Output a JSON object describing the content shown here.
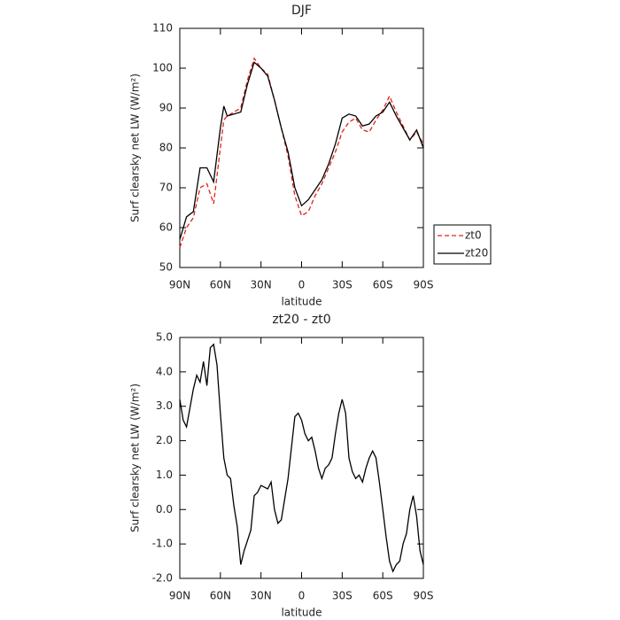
{
  "chart_data": [
    {
      "type": "line",
      "title": "DJF",
      "x_label": "latitude",
      "y_label": "Surf clearsky net LW (W/m²)",
      "x": [
        90,
        85,
        80,
        75,
        70,
        65,
        60,
        57.5,
        55,
        50,
        45,
        40,
        35,
        30,
        25,
        20,
        15,
        10,
        5,
        0,
        -5,
        -10,
        -15,
        -20,
        -25,
        -30,
        -35,
        -40,
        -45,
        -50,
        -55,
        -60,
        -65,
        -70,
        -75,
        -80,
        -85,
        -90
      ],
      "series": [
        {
          "name": "zt0",
          "color": "#e0201b",
          "linestyle": "dashed",
          "values": [
            55,
            60,
            62.5,
            70,
            71,
            66,
            80,
            87,
            88,
            89,
            90,
            97,
            102.5,
            100,
            98.5,
            92,
            85,
            78,
            68,
            63,
            64,
            68,
            71,
            75,
            79,
            84,
            86.5,
            87.5,
            84.5,
            84,
            87,
            89.5,
            93,
            89,
            85.5,
            82,
            84,
            81
          ]
        },
        {
          "name": "zt20",
          "color": "#000000",
          "linestyle": "solid",
          "values": [
            57,
            62.7,
            64,
            75,
            75,
            71.5,
            85,
            90.5,
            88,
            88.5,
            89,
            96,
            101.5,
            100,
            98,
            92,
            85,
            79,
            70,
            65.5,
            67,
            69.5,
            72,
            76,
            81,
            87.5,
            88.5,
            88,
            85.5,
            86,
            88,
            89,
            91.5,
            88,
            85,
            82,
            84.5,
            80
          ]
        }
      ],
      "xlim": [
        90,
        -90
      ],
      "xticks": [
        {
          "value": 90,
          "label": "90N"
        },
        {
          "value": 60,
          "label": "60N"
        },
        {
          "value": 30,
          "label": "30N"
        },
        0,
        {
          "value": -30,
          "label": "30S"
        },
        {
          "value": -60,
          "label": "60S"
        },
        {
          "value": -90,
          "label": "90S"
        }
      ],
      "ylim": [
        50,
        110
      ],
      "yticks": [
        50,
        60,
        70,
        80,
        90,
        100,
        110
      ],
      "legend": "right"
    },
    {
      "type": "line",
      "title": "zt20 - zt0",
      "x_label": "latitude",
      "y_label": "Surf clearsky net LW (W/m²)",
      "x": [
        90,
        87.5,
        85,
        80,
        77.5,
        75,
        72.5,
        70,
        67.5,
        65,
        62.5,
        60,
        57.5,
        55,
        52.5,
        50,
        47.5,
        45,
        42.5,
        40,
        37.5,
        35,
        32.5,
        30,
        25,
        22.5,
        20,
        17.5,
        15,
        12.5,
        10,
        5,
        2.5,
        0,
        -2.5,
        -5,
        -7.5,
        -10,
        -12.5,
        -15,
        -17.5,
        -20,
        -22.5,
        -25,
        -27.5,
        -30,
        -32.5,
        -35,
        -37.5,
        -40,
        -42.5,
        -45,
        -47.5,
        -50,
        -52.5,
        -55,
        -57.5,
        -60,
        -62.5,
        -65,
        -67.5,
        -70,
        -72.5,
        -75,
        -77.5,
        -80,
        -82.5,
        -85,
        -87.5,
        -90
      ],
      "series": [
        {
          "color": "#000000",
          "linestyle": "solid",
          "values": [
            3.2,
            2.6,
            2.4,
            3.5,
            3.9,
            3.7,
            4.3,
            3.6,
            4.7,
            4.8,
            4.2,
            2.8,
            1.5,
            1.0,
            0.9,
            0.1,
            -0.5,
            -1.6,
            -1.2,
            -0.9,
            -0.6,
            0.4,
            0.5,
            0.7,
            0.6,
            0.8,
            0.0,
            -0.4,
            -0.3,
            0.3,
            0.9,
            2.7,
            2.8,
            2.6,
            2.2,
            2.0,
            2.1,
            1.7,
            1.2,
            0.9,
            1.2,
            1.3,
            1.5,
            2.2,
            2.8,
            3.2,
            2.8,
            1.5,
            1.1,
            0.9,
            1.0,
            0.8,
            1.2,
            1.5,
            1.7,
            1.5,
            0.8,
            0.0,
            -0.8,
            -1.5,
            -1.8,
            -1.6,
            -1.5,
            -1.0,
            -0.7,
            0.0,
            0.4,
            -0.2,
            -1.2,
            -1.6
          ]
        }
      ],
      "xlim": [
        90,
        -90
      ],
      "xticks": [
        {
          "value": 90,
          "label": "90N"
        },
        {
          "value": 60,
          "label": "60N"
        },
        {
          "value": 30,
          "label": "30N"
        },
        0,
        {
          "value": -30,
          "label": "30S"
        },
        {
          "value": -60,
          "label": "60S"
        },
        {
          "value": -90,
          "label": "90S"
        }
      ],
      "ylim": [
        -2,
        5
      ],
      "yticks": [
        {
          "value": -2,
          "label": "-2.0"
        },
        {
          "value": -1,
          "label": "-1.0"
        },
        {
          "value": 0,
          "label": "0.0"
        },
        {
          "value": 1,
          "label": "1.0"
        },
        {
          "value": 2,
          "label": "2.0"
        },
        {
          "value": 3,
          "label": "3.0"
        },
        {
          "value": 4,
          "label": "4.0"
        },
        {
          "value": 5,
          "label": "5.0"
        }
      ]
    }
  ]
}
